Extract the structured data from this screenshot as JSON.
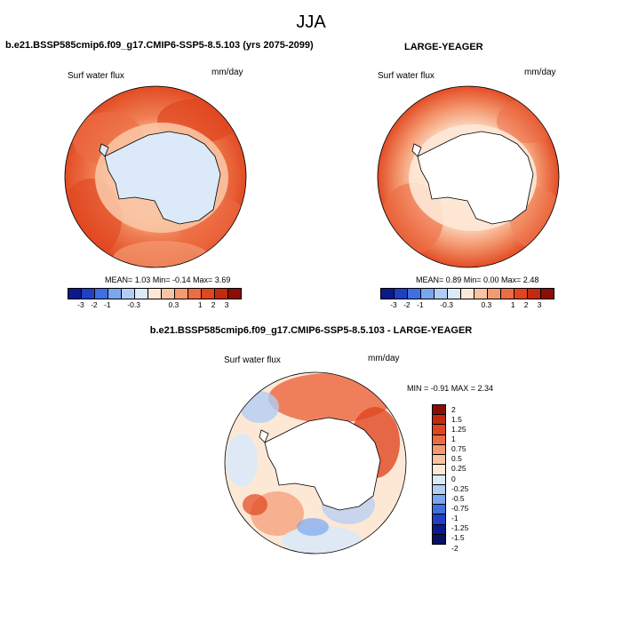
{
  "season": "JJA",
  "panels": [
    {
      "title": "b.e21.BSSP585cmip6.f09_g17.CMIP6-SSP5-8.5.103 (yrs 2075-2099)",
      "variable": "Surf water flux",
      "units": "mm/day",
      "stats": "MEAN=   1.03  Min=  -0.14  Max=   3.69"
    },
    {
      "title": "LARGE-YEAGER",
      "variable": "Surf water flux",
      "units": "mm/day",
      "stats": "MEAN=   0.89  Min=   0.00  Max=   2.48"
    },
    {
      "title": "b.e21.BSSP585cmip6.f09_g17.CMIP6-SSP5-8.5.103 - LARGE-YEAGER",
      "variable": "Surf water flux",
      "units": "mm/day",
      "stats": "MIN =  -0.91 MAX =   2.34"
    }
  ],
  "colorbar_main": {
    "colors": [
      "#0a1a8c",
      "#1f3fc4",
      "#3f6fe0",
      "#7aa6ef",
      "#b2cdf5",
      "#dbe9f8",
      "#fde8d6",
      "#f9c4a3",
      "#f49a72",
      "#ec6c45",
      "#e04620",
      "#c42a0f",
      "#8c0d05"
    ],
    "labels": [
      "-3",
      "-2",
      "-1",
      "-0.3",
      "0.3",
      "1",
      "2",
      "3"
    ]
  },
  "colorbar_diff": {
    "colors": [
      "#8c0d05",
      "#c42a0f",
      "#e04620",
      "#ec6c45",
      "#f49a72",
      "#f9c4a3",
      "#fde8d6",
      "#dbe9f8",
      "#b2cdf5",
      "#7aa6ef",
      "#3f6fe0",
      "#1f3fc4",
      "#0a1a8c",
      "#081060"
    ],
    "labels": [
      "2",
      "1.5",
      "1.25",
      "1",
      "0.75",
      "0.5",
      "0.25",
      "0",
      "-0.25",
      "-0.5",
      "-0.75",
      "-1",
      "-1.25",
      "-1.5",
      "-2"
    ]
  }
}
